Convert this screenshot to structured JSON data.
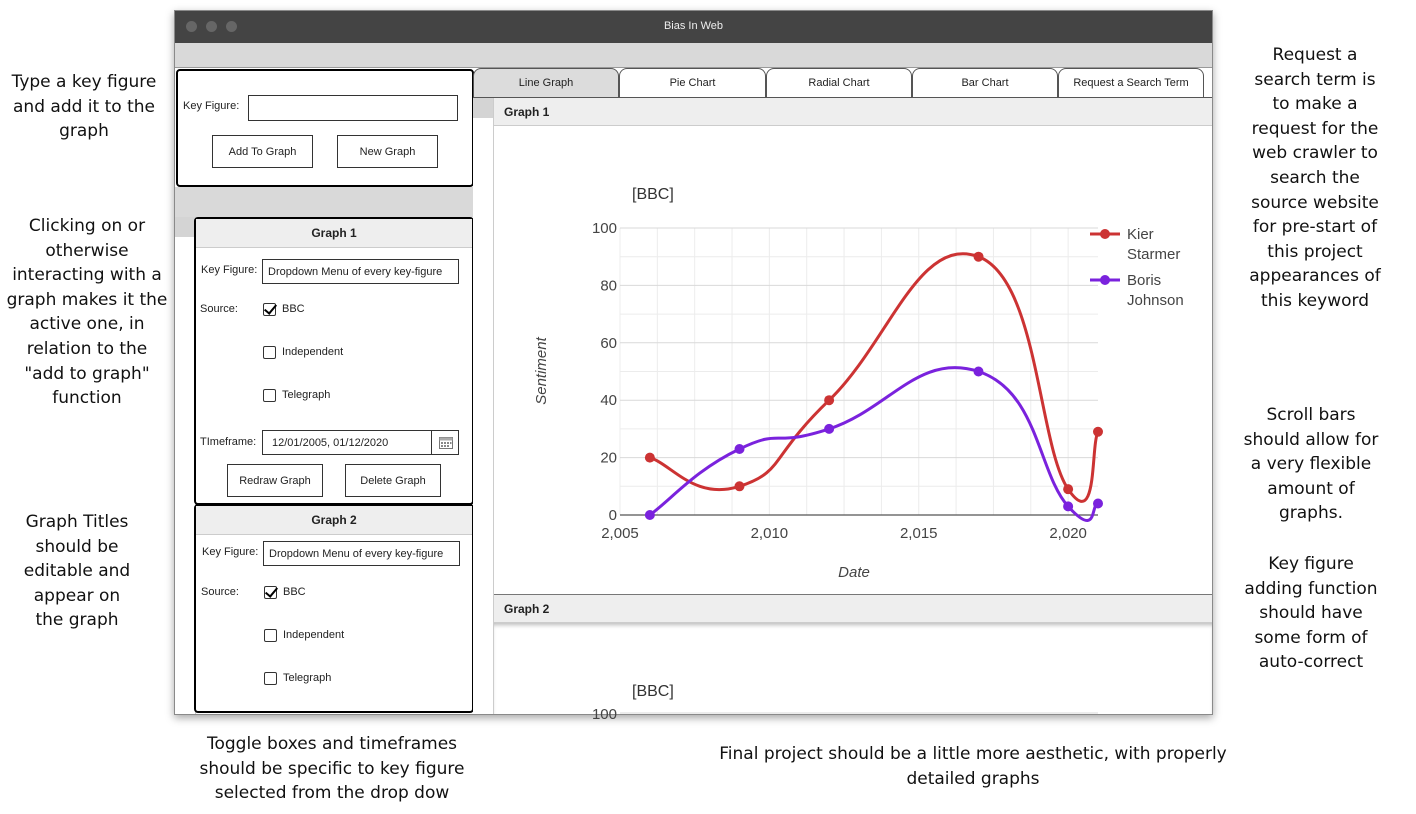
{
  "annotations": {
    "key_figure_note": "Type a key figure and add it to the graph",
    "active_graph_note": "Clicking on or otherwise interacting with a graph makes it the active one, in relation to the \"add to graph\" function",
    "titles_note": "Graph Titles should be editable and appear on the graph",
    "toggle_note": "Toggle boxes and timeframes should be specific to key figure selected from the drop dow",
    "aesthetic_note": "Final project should be a little more aesthetic, with properly detailed graphs",
    "request_note": "Request a search term is to make a request for the web crawler to search the source website for pre-start of this project appearances of this keyword",
    "scroll_note": "Scroll bars should allow for a very flexible amount of graphs.",
    "autocorrect_note": "Key figure adding function should have some form of auto-correct"
  },
  "window": {
    "title": "Bias In Web"
  },
  "add_panel": {
    "key_figure_label": "Key Figure:",
    "key_figure_value": "",
    "add_button": "Add To Graph",
    "new_button": "New Graph"
  },
  "graph1_panel": {
    "title": "Graph 1",
    "key_figure_label": "Key Figure:",
    "key_figure_value": "Dropdown Menu of every key-figure",
    "source_label": "Source:",
    "sources": [
      {
        "name": "BBC",
        "checked": true
      },
      {
        "name": "Independent",
        "checked": false
      },
      {
        "name": "Telegraph",
        "checked": false
      }
    ],
    "timeframe_label": "TImeframe:",
    "timeframe_value": "12/01/2005, 01/12/2020",
    "redraw_button": "Redraw Graph",
    "delete_button": "Delete Graph"
  },
  "graph2_panel": {
    "title": "Graph 2",
    "key_figure_label": "Key Figure:",
    "key_figure_value": "Dropdown Menu of every key-figure",
    "source_label": "Source:",
    "sources": [
      {
        "name": "BBC",
        "checked": true
      },
      {
        "name": "Independent",
        "checked": false
      },
      {
        "name": "Telegraph",
        "checked": false
      }
    ]
  },
  "tabs": [
    "Line Graph",
    "Pie Chart",
    "Radial Chart",
    "Bar Chart",
    "Request a Search Term"
  ],
  "active_tab": "Line Graph",
  "graph1_section": "Graph 1",
  "graph2_section": "Graph 2",
  "chart_data": [
    {
      "type": "line",
      "title": "[BBC]",
      "xlabel": "Date",
      "ylabel": "Sentiment",
      "xlim": [
        2005,
        2021
      ],
      "ylim": [
        0,
        100
      ],
      "x_ticks": [
        "2,005",
        "2,010",
        "2,015",
        "2,020"
      ],
      "y_ticks": [
        "0",
        "20",
        "40",
        "60",
        "80",
        "100"
      ],
      "grid": true,
      "legend_position": "right",
      "series": [
        {
          "name": "Kier Starmer",
          "color": "#cc3333",
          "x": [
            2006,
            2009,
            2012,
            2017,
            2020,
            2021
          ],
          "y": [
            20,
            10,
            40,
            90,
            9,
            29
          ]
        },
        {
          "name": "Boris Johnson",
          "color": "#7a22dd",
          "x": [
            2006,
            2009,
            2012,
            2017,
            2020,
            2021
          ],
          "y": [
            0,
            23,
            30,
            50,
            3,
            4
          ]
        }
      ]
    },
    {
      "type": "line",
      "title": "[BBC]",
      "y_ticks": [
        "100"
      ]
    }
  ]
}
